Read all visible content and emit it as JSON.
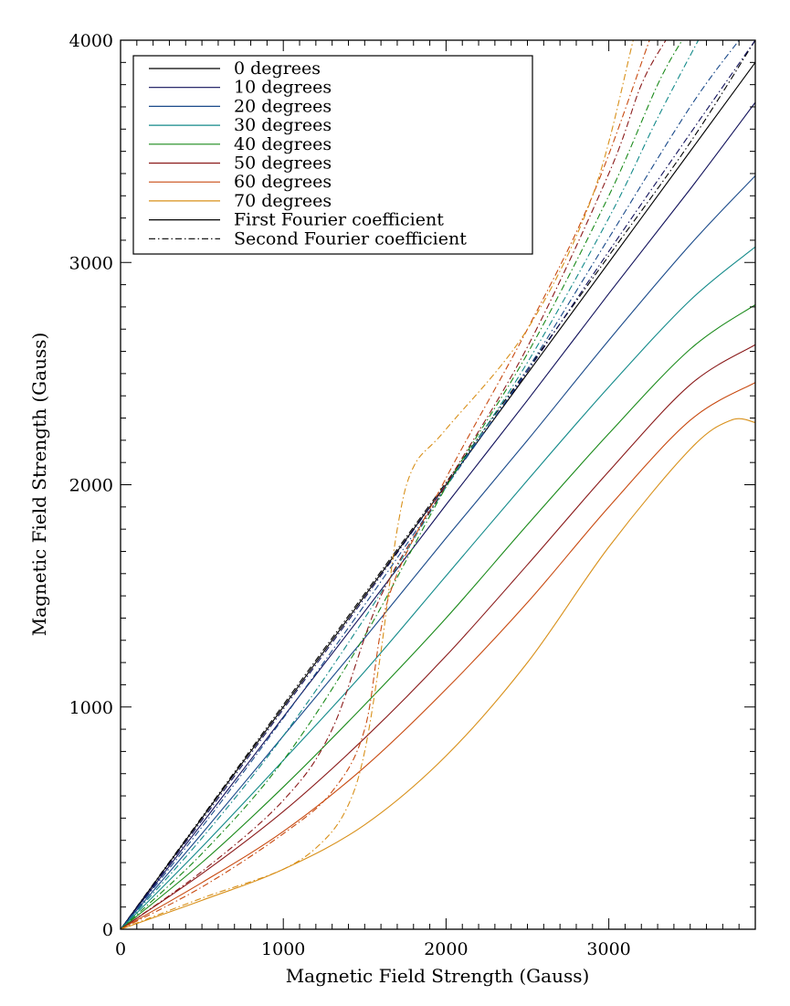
{
  "chart_data": {
    "type": "line",
    "title": "",
    "xlabel": "Magnetic Field Strength (Gauss)",
    "ylabel": "Magnetic Field Strength (Gauss)",
    "xlim": [
      0,
      3900
    ],
    "ylim": [
      0,
      4000
    ],
    "xticks": [
      0,
      1000,
      2000,
      3000
    ],
    "yticks": [
      0,
      1000,
      2000,
      3000,
      4000
    ],
    "xtick_labels": [
      "0",
      "1000",
      "2000",
      "3000"
    ],
    "ytick_labels": [
      "0",
      "1000",
      "2000",
      "3000",
      "4000"
    ],
    "legend_position": "top-left",
    "legend": [
      {
        "label": "0 degrees",
        "color": "#000000",
        "dash": "solid"
      },
      {
        "label": "10 degrees",
        "color": "#10105a",
        "dash": "solid"
      },
      {
        "label": "20 degrees",
        "color": "#1a4a8a",
        "dash": "solid"
      },
      {
        "label": "30 degrees",
        "color": "#138a8a",
        "dash": "solid"
      },
      {
        "label": "40 degrees",
        "color": "#1a8a1a",
        "dash": "solid"
      },
      {
        "label": "50 degrees",
        "color": "#8a1a1a",
        "dash": "solid"
      },
      {
        "label": "60 degrees",
        "color": "#c84a10",
        "dash": "solid"
      },
      {
        "label": "70 degrees",
        "color": "#d8901a",
        "dash": "solid"
      },
      {
        "label": "First Fourier coefficient",
        "color": "#000000",
        "dash": "solid"
      },
      {
        "label": "Second Fourier coefficient",
        "color": "#000000",
        "dash": "dashdot"
      }
    ],
    "series": [
      {
        "name": "0 degrees — First Fourier coefficient",
        "color": "#000000",
        "dash": "solid",
        "x": [
          0,
          500,
          1000,
          1500,
          2000,
          2500,
          3000,
          3500,
          3900
        ],
        "y": [
          0,
          500,
          1000,
          1500,
          2000,
          2500,
          3000,
          3500,
          3900
        ]
      },
      {
        "name": "10 degrees — First Fourier coefficient",
        "color": "#10105a",
        "dash": "solid",
        "x": [
          0,
          500,
          1000,
          1500,
          2000,
          2500,
          3000,
          3500,
          3900
        ],
        "y": [
          0,
          475,
          955,
          1430,
          1910,
          2380,
          2860,
          3330,
          3720
        ]
      },
      {
        "name": "20 degrees — First Fourier coefficient",
        "color": "#1a4a8a",
        "dash": "solid",
        "x": [
          0,
          500,
          1000,
          1500,
          2000,
          2500,
          3000,
          3500,
          3900
        ],
        "y": [
          0,
          430,
          870,
          1310,
          1760,
          2200,
          2650,
          3080,
          3390
        ]
      },
      {
        "name": "30 degrees — First Fourier coefficient",
        "color": "#138a8a",
        "dash": "solid",
        "x": [
          0,
          500,
          1000,
          1500,
          2000,
          2500,
          3000,
          3500,
          3900
        ],
        "y": [
          0,
          370,
          760,
          1160,
          1590,
          2020,
          2440,
          2830,
          3070
        ]
      },
      {
        "name": "40 degrees — First Fourier coefficient",
        "color": "#1a8a1a",
        "dash": "solid",
        "x": [
          0,
          500,
          1000,
          1500,
          2000,
          2500,
          3000,
          3500,
          3900
        ],
        "y": [
          0,
          300,
          640,
          1010,
          1400,
          1820,
          2230,
          2610,
          2810
        ]
      },
      {
        "name": "50 degrees — First Fourier coefficient",
        "color": "#8a1a1a",
        "dash": "solid",
        "x": [
          0,
          500,
          1000,
          1500,
          2000,
          2500,
          3000,
          3500,
          3900
        ],
        "y": [
          0,
          250,
          530,
          860,
          1230,
          1640,
          2060,
          2450,
          2630
        ]
      },
      {
        "name": "60 degrees — First Fourier coefficient",
        "color": "#c84a10",
        "dash": "solid",
        "x": [
          0,
          500,
          1000,
          1500,
          2000,
          2500,
          3000,
          3500,
          3900
        ],
        "y": [
          0,
          210,
          440,
          730,
          1080,
          1470,
          1900,
          2290,
          2460
        ]
      },
      {
        "name": "70 degrees — First Fourier coefficient",
        "color": "#d8901a",
        "dash": "solid",
        "x": [
          0,
          500,
          1000,
          1500,
          2000,
          2500,
          3000,
          3500,
          3750,
          3900
        ],
        "y": [
          0,
          130,
          270,
          470,
          780,
          1200,
          1720,
          2160,
          2290,
          2280
        ]
      },
      {
        "name": "0 degrees — Second Fourier coefficient",
        "color": "#000000",
        "dash": "dashdot",
        "x": [
          0,
          500,
          1000,
          1500,
          2000,
          2500,
          3000,
          3500,
          3900
        ],
        "y": [
          0,
          505,
          1010,
          1510,
          2010,
          2520,
          3030,
          3540,
          4000
        ]
      },
      {
        "name": "10 degrees — Second Fourier coefficient",
        "color": "#10105a",
        "dash": "dashdot",
        "x": [
          0,
          500,
          1000,
          1500,
          2000,
          2500,
          3000,
          3500,
          3900
        ],
        "y": [
          0,
          490,
          990,
          1490,
          2000,
          2510,
          3050,
          3580,
          4000
        ]
      },
      {
        "name": "20 degrees — Second Fourier coefficient",
        "color": "#1a4a8a",
        "dash": "dashdot",
        "x": [
          0,
          500,
          1000,
          1500,
          2000,
          2500,
          3000,
          3500,
          3800
        ],
        "y": [
          0,
          460,
          950,
          1460,
          1990,
          2520,
          3110,
          3700,
          4000
        ]
      },
      {
        "name": "30 degrees — Second Fourier coefficient",
        "color": "#138a8a",
        "dash": "dashdot",
        "x": [
          0,
          500,
          1000,
          1500,
          2000,
          2500,
          3000,
          3300,
          3550
        ],
        "y": [
          0,
          410,
          870,
          1400,
          1990,
          2550,
          3200,
          3650,
          4000
        ]
      },
      {
        "name": "40 degrees — Second Fourier coefficient",
        "color": "#1a8a1a",
        "dash": "dashdot",
        "x": [
          0,
          500,
          1000,
          1500,
          2000,
          2500,
          3000,
          3300,
          3450
        ],
        "y": [
          0,
          340,
          760,
          1320,
          1990,
          2590,
          3300,
          3800,
          4000
        ]
      },
      {
        "name": "50 degrees — Second Fourier coefficient",
        "color": "#8a1a1a",
        "dash": "dashdot",
        "x": [
          0,
          500,
          1000,
          1300,
          1600,
          2000,
          2500,
          3000,
          3200,
          3350
        ],
        "y": [
          0,
          260,
          580,
          900,
          1500,
          2000,
          2620,
          3400,
          3800,
          4000
        ]
      },
      {
        "name": "60 degrees — Second Fourier coefficient",
        "color": "#c84a10",
        "dash": "dashdot",
        "x": [
          0,
          500,
          1000,
          1300,
          1500,
          1650,
          2000,
          2500,
          2900,
          3250
        ],
        "y": [
          0,
          190,
          430,
          620,
          900,
          1500,
          2030,
          2700,
          3300,
          4000
        ]
      },
      {
        "name": "70 degrees — Second Fourier coefficient",
        "color": "#d8901a",
        "dash": "dashdot",
        "x": [
          0,
          500,
          1000,
          1250,
          1400,
          1500,
          1600,
          1700,
          1800,
          2000,
          2500,
          2900,
          3150
        ],
        "y": [
          0,
          140,
          270,
          400,
          560,
          800,
          1250,
          1800,
          2080,
          2250,
          2700,
          3300,
          4000
        ]
      }
    ]
  }
}
